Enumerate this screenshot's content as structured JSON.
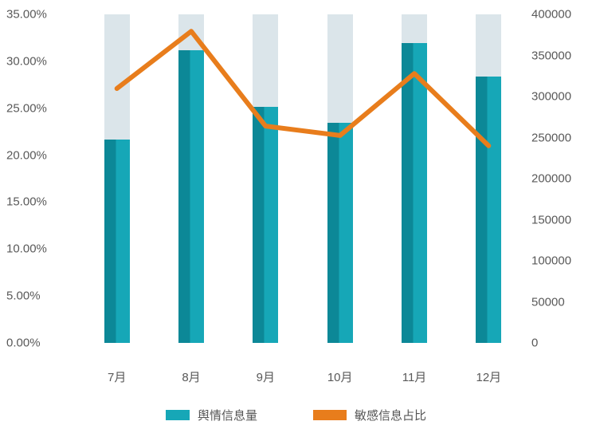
{
  "chart_data": {
    "type": "bar",
    "subtype": "bar+line combo, dual axis",
    "categories": [
      "7月",
      "8月",
      "9月",
      "10月",
      "11月",
      "12月"
    ],
    "series": [
      {
        "name": "舆情信息量",
        "type": "bar",
        "axis": "right",
        "values": [
          248000,
          356000,
          287000,
          268000,
          365000,
          324000
        ]
      },
      {
        "name": "敏感信息占比",
        "type": "line",
        "axis": "left",
        "values": [
          27.1,
          33.2,
          23.1,
          22.1,
          28.7,
          21.0
        ]
      }
    ],
    "left_axis": {
      "min": 0,
      "max": 35,
      "unit": "%",
      "ticks": [
        "35.00%",
        "30.00%",
        "25.00%",
        "20.00%",
        "15.00%",
        "10.00%",
        "5.00%",
        "0.00%"
      ]
    },
    "right_axis": {
      "min": 0,
      "max": 400000,
      "ticks": [
        "400000",
        "350000",
        "300000",
        "250000",
        "200000",
        "150000",
        "100000",
        "50000",
        "0"
      ]
    },
    "legend": [
      {
        "label": "舆情信息量",
        "swatch": "bar"
      },
      {
        "label": "敏感信息占比",
        "swatch": "line"
      }
    ],
    "grid": "off",
    "legend_position": "bottom-center",
    "colors": {
      "bar": "#16a7b7",
      "bar_dark": "#0c8897",
      "bar_background": "#dbe5ea",
      "line": "#e87d1c",
      "text": "#595959"
    }
  }
}
